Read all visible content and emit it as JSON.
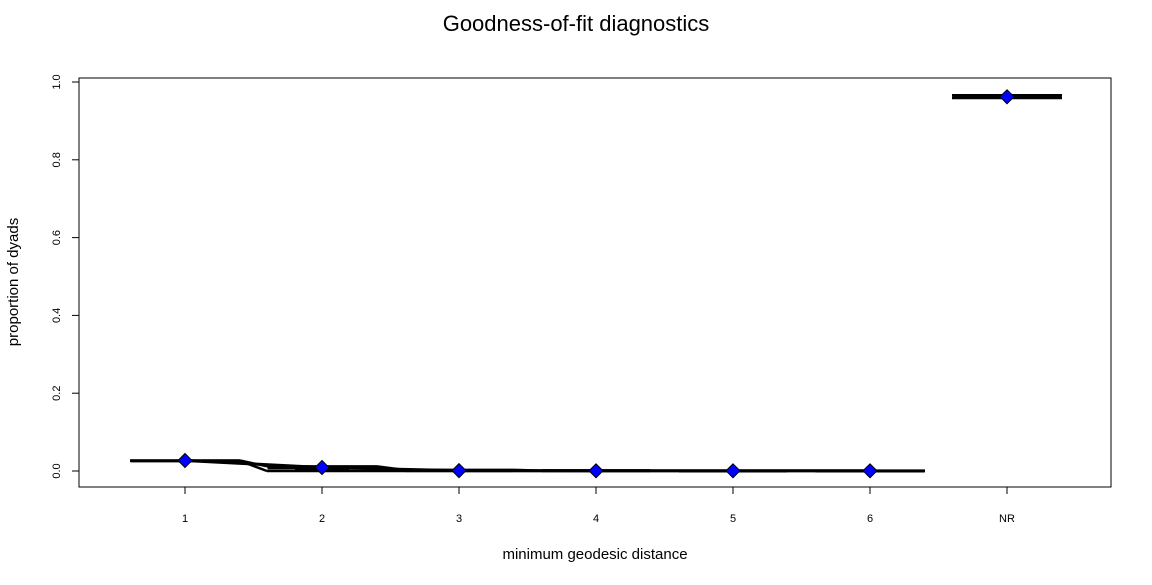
{
  "chart_data": {
    "type": "box",
    "title": "Goodness-of-fit diagnostics",
    "xlabel": "minimum geodesic distance",
    "ylabel": "proportion of dyads",
    "categories": [
      "1",
      "2",
      "3",
      "4",
      "5",
      "6",
      "NR"
    ],
    "ylim": [
      0,
      1
    ],
    "yticks": [
      "0.0",
      "0.2",
      "0.4",
      "0.6",
      "0.8",
      "1.0"
    ],
    "boxes": [
      {
        "min": 0.026,
        "q1": 0.026,
        "median": 0.026,
        "q3": 0.027,
        "max": 0.027
      },
      {
        "min": 0.004,
        "q1": 0.006,
        "median": 0.008,
        "q3": 0.01,
        "max": 0.012
      },
      {
        "min": 0.0,
        "q1": 0.001,
        "median": 0.001,
        "q3": 0.002,
        "max": 0.003
      },
      {
        "min": 0.0,
        "q1": 0.0,
        "median": 0.001,
        "q3": 0.001,
        "max": 0.001
      },
      {
        "min": 0.0,
        "q1": 0.0,
        "median": 0.0,
        "q3": 0.001,
        "max": 0.001
      },
      {
        "min": 0.0,
        "q1": 0.0,
        "median": 0.0,
        "q3": 0.0,
        "max": 0.001
      },
      {
        "min": 0.958,
        "q1": 0.959,
        "median": 0.962,
        "q3": 0.965,
        "max": 0.966
      }
    ],
    "observed": [
      0.027,
      0.009,
      0.001,
      0.0005,
      0.0005,
      0.0005,
      0.962
    ],
    "band_upper": [
      0.027,
      0.012,
      0.003,
      0.001,
      0.001,
      0.001,
      0.966
    ],
    "band_lower": [
      0.026,
      0.0,
      0.0,
      0.0,
      0.0,
      0.0,
      0.959
    ],
    "observed_color": "#0000ff",
    "grid": false,
    "legend": "none"
  }
}
